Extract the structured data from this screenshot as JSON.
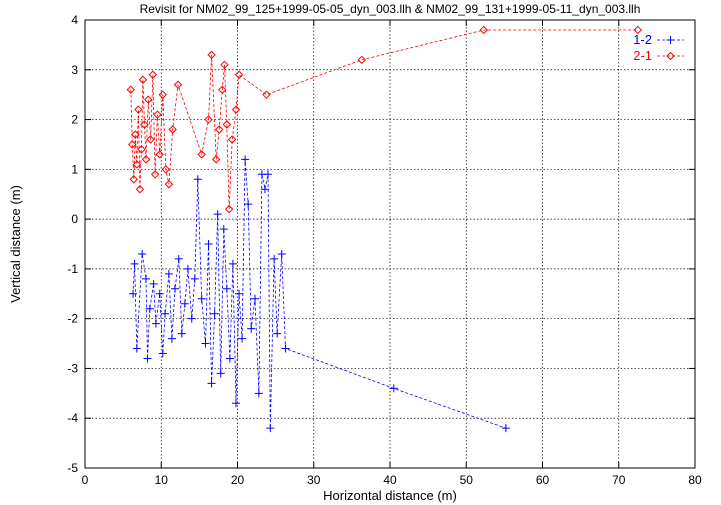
{
  "chart_data": {
    "type": "scatter",
    "title": "Revisit for NM02_99_125+1999-05-05_dyn_003.llh & NM02_99_131+1999-05-11_dyn_003.llh",
    "xlabel": "Horizontal distance (m)",
    "ylabel": "Vertical distance (m)",
    "xlim": [
      0,
      80
    ],
    "ylim": [
      -5,
      4
    ],
    "xticks": [
      0,
      10,
      20,
      30,
      40,
      50,
      60,
      70,
      80
    ],
    "yticks": [
      -5,
      -4,
      -3,
      -2,
      -1,
      0,
      1,
      2,
      3,
      4
    ],
    "grid": true,
    "legend_position": "top-right",
    "series": [
      {
        "name": "1-2",
        "color": "#0000ff",
        "marker": "plus",
        "line": "dashed",
        "points": [
          [
            6.3,
            -1.5
          ],
          [
            6.5,
            -0.9
          ],
          [
            6.8,
            -2.6
          ],
          [
            7.5,
            -0.7
          ],
          [
            8.0,
            -1.2
          ],
          [
            8.2,
            -2.8
          ],
          [
            8.5,
            -1.8
          ],
          [
            9.0,
            -1.3
          ],
          [
            9.3,
            -2.1
          ],
          [
            9.8,
            -1.5
          ],
          [
            10.2,
            -2.7
          ],
          [
            10.5,
            -1.9
          ],
          [
            11.0,
            -1.1
          ],
          [
            11.4,
            -2.4
          ],
          [
            11.8,
            -1.4
          ],
          [
            12.3,
            -0.8
          ],
          [
            12.7,
            -2.3
          ],
          [
            13.1,
            -1.7
          ],
          [
            13.5,
            -1.0
          ],
          [
            14.0,
            -2.0
          ],
          [
            14.4,
            -1.2
          ],
          [
            14.8,
            0.8
          ],
          [
            15.3,
            -1.6
          ],
          [
            15.8,
            -2.5
          ],
          [
            16.2,
            -0.5
          ],
          [
            16.6,
            -3.3
          ],
          [
            17.0,
            -1.9
          ],
          [
            17.4,
            0.1
          ],
          [
            17.8,
            -3.1
          ],
          [
            18.2,
            -0.2
          ],
          [
            18.6,
            -1.4
          ],
          [
            19.0,
            -2.8
          ],
          [
            19.4,
            -0.9
          ],
          [
            19.8,
            -3.7
          ],
          [
            20.2,
            -1.5
          ],
          [
            20.6,
            -2.4
          ],
          [
            21.0,
            1.2
          ],
          [
            21.4,
            0.3
          ],
          [
            21.8,
            -2.2
          ],
          [
            22.3,
            -1.6
          ],
          [
            22.8,
            -3.5
          ],
          [
            23.2,
            0.9
          ],
          [
            23.6,
            0.6
          ],
          [
            24.0,
            0.9
          ],
          [
            24.3,
            -4.2
          ],
          [
            24.8,
            -0.8
          ],
          [
            25.2,
            -2.3
          ],
          [
            25.8,
            -0.7
          ],
          [
            26.3,
            -2.6
          ],
          [
            40.5,
            -3.4
          ],
          [
            55.2,
            -4.2
          ]
        ]
      },
      {
        "name": "2-1",
        "color": "#ff0000",
        "marker": "diamond",
        "line": "dashed",
        "points": [
          [
            6.0,
            2.6
          ],
          [
            6.2,
            1.5
          ],
          [
            6.4,
            0.8
          ],
          [
            6.6,
            1.7
          ],
          [
            6.8,
            1.1
          ],
          [
            7.0,
            2.2
          ],
          [
            7.2,
            0.6
          ],
          [
            7.4,
            1.4
          ],
          [
            7.6,
            2.8
          ],
          [
            7.8,
            1.9
          ],
          [
            8.0,
            1.2
          ],
          [
            8.3,
            2.4
          ],
          [
            8.6,
            1.6
          ],
          [
            8.9,
            2.9
          ],
          [
            9.2,
            0.9
          ],
          [
            9.5,
            2.1
          ],
          [
            9.8,
            1.3
          ],
          [
            10.2,
            2.5
          ],
          [
            10.6,
            1.0
          ],
          [
            11.0,
            0.7
          ],
          [
            11.5,
            1.8
          ],
          [
            12.2,
            2.7
          ],
          [
            15.3,
            1.3
          ],
          [
            16.2,
            2.0
          ],
          [
            16.6,
            3.3
          ],
          [
            17.2,
            1.2
          ],
          [
            17.6,
            1.8
          ],
          [
            18.0,
            2.6
          ],
          [
            18.3,
            3.1
          ],
          [
            18.6,
            1.9
          ],
          [
            18.9,
            0.2
          ],
          [
            19.3,
            1.6
          ],
          [
            19.8,
            2.2
          ],
          [
            20.2,
            2.9
          ],
          [
            23.8,
            2.5
          ],
          [
            36.3,
            3.2
          ],
          [
            52.3,
            3.8
          ],
          [
            72.5,
            3.8
          ]
        ]
      }
    ]
  }
}
